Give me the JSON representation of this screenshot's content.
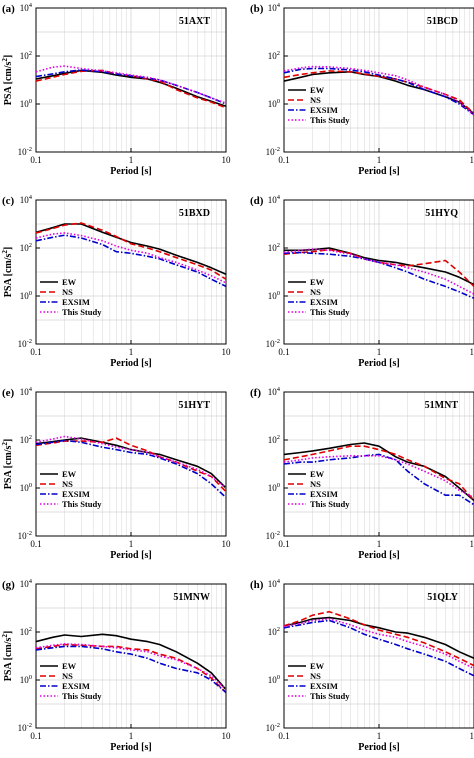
{
  "figure": {
    "legend_entries": [
      "EW",
      "NS",
      "EXSIM",
      "This Study"
    ],
    "series_style": {
      "EW": {
        "color": "#000000",
        "dash": "solid"
      },
      "NS": {
        "color": "#e00000",
        "dash": "dashed"
      },
      "EXSIM": {
        "color": "#0000cc",
        "dash": "dashdot"
      },
      "This Study": {
        "color": "#e000e0",
        "dash": "dotted"
      }
    },
    "legend_placement": "bottom-left"
  },
  "chart_data": [
    {
      "type": "line",
      "panel_label": "(a)",
      "station": "51AXT",
      "xlabel": "Period [s]",
      "ylabel": "PSA [cm/s",
      "ylabel_sup": "2",
      "ylabel_end": "]",
      "xscale": "log",
      "yscale": "log",
      "xlim": [
        0.1,
        10
      ],
      "ylim": [
        0.01,
        10000
      ],
      "xticks": [
        "0.1",
        "1",
        "10"
      ],
      "yticks_exp": [
        "-2",
        "0",
        "2",
        "4"
      ],
      "grid": true,
      "legend": false,
      "x": [
        0.1,
        0.15,
        0.2,
        0.3,
        0.5,
        0.7,
        1,
        1.5,
        2,
        3,
        5,
        7,
        10
      ],
      "series": [
        {
          "name": "EW",
          "values": [
            11,
            15,
            19,
            25,
            21,
            16,
            13,
            11,
            8,
            4.5,
            2,
            1.3,
            0.8
          ]
        },
        {
          "name": "NS",
          "values": [
            9,
            13,
            17,
            23,
            25,
            18,
            15,
            11,
            9,
            4,
            1.8,
            1.2,
            0.7
          ]
        },
        {
          "name": "EXSIM",
          "values": [
            14,
            18,
            22,
            26,
            22,
            18,
            15,
            12,
            10,
            6,
            3,
            1.8,
            1
          ]
        },
        {
          "name": "This Study",
          "values": [
            22,
            34,
            38,
            30,
            24,
            20,
            16,
            13,
            10,
            6,
            3,
            1.8,
            1.1
          ]
        }
      ]
    },
    {
      "type": "line",
      "panel_label": "(b)",
      "station": "51BCD",
      "xlabel": "Period [s]",
      "ylabel": "",
      "ylabel_sup": "",
      "ylabel_end": "",
      "xscale": "log",
      "yscale": "log",
      "xlim": [
        0.1,
        10
      ],
      "ylim": [
        0.01,
        10000
      ],
      "xticks": [
        "0.1",
        "1",
        "10"
      ],
      "yticks_exp": [
        "-2",
        "0",
        "2",
        "4"
      ],
      "grid": true,
      "legend": true,
      "x": [
        0.1,
        0.15,
        0.2,
        0.3,
        0.5,
        0.7,
        1,
        1.5,
        2,
        3,
        5,
        7,
        10
      ],
      "series": [
        {
          "name": "EW",
          "values": [
            9,
            13,
            17,
            20,
            22,
            17,
            14,
            9,
            6,
            4,
            2,
            1.2,
            0.4
          ]
        },
        {
          "name": "NS",
          "values": [
            13,
            17,
            20,
            24,
            22,
            18,
            14,
            11,
            8,
            5,
            2.5,
            1.5,
            0.4
          ]
        },
        {
          "name": "EXSIM",
          "values": [
            20,
            28,
            30,
            30,
            26,
            22,
            16,
            11,
            8,
            4,
            2,
            1,
            0.35
          ]
        },
        {
          "name": "This Study",
          "values": [
            24,
            32,
            36,
            35,
            30,
            25,
            20,
            15,
            10,
            5,
            2.5,
            1.2,
            0.35
          ]
        }
      ]
    },
    {
      "type": "line",
      "panel_label": "(c)",
      "station": "51BXD",
      "xlabel": "Period [s]",
      "ylabel": "PSA [cm/s",
      "ylabel_sup": "2",
      "ylabel_end": "]",
      "xscale": "log",
      "yscale": "log",
      "xlim": [
        0.1,
        10
      ],
      "ylim": [
        0.01,
        10000
      ],
      "xticks": [
        "0.1",
        "1",
        "10"
      ],
      "yticks_exp": [
        "-2",
        "0",
        "2",
        "4"
      ],
      "grid": true,
      "legend": true,
      "x": [
        0.1,
        0.15,
        0.2,
        0.3,
        0.5,
        0.7,
        1,
        1.5,
        2,
        3,
        5,
        7,
        10
      ],
      "series": [
        {
          "name": "EW",
          "values": [
            450,
            700,
            1000,
            1000,
            450,
            280,
            170,
            120,
            90,
            50,
            25,
            15,
            8
          ]
        },
        {
          "name": "NS",
          "values": [
            420,
            650,
            900,
            1100,
            550,
            300,
            150,
            100,
            70,
            40,
            20,
            12,
            5
          ]
        },
        {
          "name": "EXSIM",
          "values": [
            200,
            280,
            340,
            260,
            140,
            70,
            60,
            45,
            35,
            20,
            10,
            5,
            2.5
          ]
        },
        {
          "name": "This Study",
          "values": [
            260,
            380,
            420,
            330,
            200,
            120,
            80,
            60,
            40,
            25,
            12,
            7,
            3.5
          ]
        }
      ]
    },
    {
      "type": "line",
      "panel_label": "(d)",
      "station": "51HYQ",
      "xlabel": "Period [s]",
      "ylabel": "",
      "ylabel_sup": "",
      "ylabel_end": "",
      "xscale": "log",
      "yscale": "log",
      "xlim": [
        0.1,
        10
      ],
      "ylim": [
        0.01,
        10000
      ],
      "xticks": [
        "0.1",
        "1",
        "10"
      ],
      "yticks_exp": [
        "-2",
        "0",
        "2",
        "4"
      ],
      "grid": true,
      "legend": true,
      "x": [
        0.1,
        0.15,
        0.2,
        0.3,
        0.5,
        0.7,
        1,
        1.5,
        2,
        3,
        5,
        7,
        10
      ],
      "series": [
        {
          "name": "EW",
          "values": [
            80,
            80,
            85,
            100,
            60,
            40,
            30,
            25,
            20,
            15,
            10,
            6,
            3
          ]
        },
        {
          "name": "NS",
          "values": [
            55,
            65,
            70,
            85,
            60,
            35,
            25,
            20,
            18,
            22,
            30,
            10,
            2.5
          ]
        },
        {
          "name": "EXSIM",
          "values": [
            60,
            65,
            60,
            55,
            45,
            35,
            25,
            15,
            10,
            5,
            2.5,
            1.5,
            0.8
          ]
        },
        {
          "name": "This Study",
          "values": [
            65,
            80,
            90,
            80,
            55,
            35,
            25,
            20,
            15,
            10,
            5,
            2.5,
            1.2
          ]
        }
      ]
    },
    {
      "type": "line",
      "panel_label": "(e)",
      "station": "51HYT",
      "xlabel": "Period [s]",
      "ylabel": "PSA [cm/s",
      "ylabel_sup": "2",
      "ylabel_end": "]",
      "xscale": "log",
      "yscale": "log",
      "xlim": [
        0.1,
        10
      ],
      "ylim": [
        0.01,
        10000
      ],
      "xticks": [
        "0.1",
        "1",
        "10"
      ],
      "yticks_exp": [
        "-2",
        "0",
        "2",
        "4"
      ],
      "grid": true,
      "legend": true,
      "x": [
        0.1,
        0.15,
        0.2,
        0.3,
        0.5,
        0.7,
        1,
        1.5,
        2,
        3,
        5,
        7,
        10
      ],
      "series": [
        {
          "name": "EW",
          "values": [
            70,
            85,
            100,
            120,
            80,
            60,
            40,
            30,
            25,
            15,
            8,
            4,
            1
          ]
        },
        {
          "name": "NS",
          "values": [
            60,
            75,
            90,
            90,
            80,
            120,
            60,
            35,
            20,
            12,
            5,
            3,
            0.7
          ]
        },
        {
          "name": "EXSIM",
          "values": [
            65,
            80,
            95,
            80,
            50,
            40,
            30,
            25,
            18,
            10,
            4,
            1.5,
            0.4
          ]
        },
        {
          "name": "This Study",
          "values": [
            80,
            110,
            140,
            110,
            70,
            50,
            40,
            30,
            20,
            12,
            6,
            3,
            1
          ]
        }
      ]
    },
    {
      "type": "line",
      "panel_label": "(f)",
      "station": "51MNT",
      "xlabel": "Period [s]",
      "ylabel": "",
      "ylabel_sup": "",
      "ylabel_end": "",
      "xscale": "log",
      "yscale": "log",
      "xlim": [
        0.1,
        10
      ],
      "ylim": [
        0.01,
        10000
      ],
      "xticks": [
        "0.1",
        "1",
        "10"
      ],
      "yticks_exp": [
        "-2",
        "0",
        "2",
        "4"
      ],
      "grid": true,
      "legend": true,
      "x": [
        0.1,
        0.15,
        0.2,
        0.3,
        0.5,
        0.7,
        1,
        1.5,
        2,
        3,
        5,
        7,
        10
      ],
      "series": [
        {
          "name": "EW",
          "values": [
            25,
            30,
            35,
            45,
            65,
            75,
            55,
            20,
            12,
            8,
            3,
            1,
            0.3
          ]
        },
        {
          "name": "NS",
          "values": [
            15,
            20,
            25,
            35,
            55,
            55,
            40,
            25,
            15,
            8,
            2.5,
            1.5,
            0.3
          ]
        },
        {
          "name": "EXSIM",
          "values": [
            10,
            12,
            12,
            15,
            18,
            22,
            25,
            15,
            5,
            1.5,
            0.5,
            0.5,
            0.2
          ]
        },
        {
          "name": "This Study",
          "values": [
            12,
            15,
            18,
            20,
            22,
            22,
            22,
            15,
            10,
            5,
            2,
            0.8,
            0.4
          ]
        }
      ]
    },
    {
      "type": "line",
      "panel_label": "(g)",
      "station": "51MNW",
      "xlabel": "Period [s]",
      "ylabel": "PSA [cm/s",
      "ylabel_sup": "2",
      "ylabel_end": "]",
      "xscale": "log",
      "yscale": "log",
      "xlim": [
        0.1,
        10
      ],
      "ylim": [
        0.01,
        10000
      ],
      "xticks": [
        "0.1",
        "1",
        "10"
      ],
      "yticks_exp": [
        "-2",
        "0",
        "2",
        "4"
      ],
      "grid": true,
      "legend": true,
      "x": [
        0.1,
        0.15,
        0.2,
        0.3,
        0.5,
        0.7,
        1,
        1.5,
        2,
        3,
        5,
        7,
        10
      ],
      "series": [
        {
          "name": "EW",
          "values": [
            40,
            60,
            75,
            65,
            80,
            70,
            50,
            40,
            30,
            15,
            5,
            2,
            0.4
          ]
        },
        {
          "name": "NS",
          "values": [
            20,
            25,
            30,
            28,
            25,
            25,
            20,
            18,
            12,
            8,
            3,
            1.2,
            0.3
          ]
        },
        {
          "name": "EXSIM",
          "values": [
            18,
            22,
            25,
            25,
            20,
            15,
            12,
            8,
            5,
            3,
            2,
            1,
            0.3
          ]
        },
        {
          "name": "This Study",
          "values": [
            22,
            28,
            32,
            30,
            25,
            22,
            18,
            15,
            10,
            7,
            3,
            1.5,
            0.4
          ]
        }
      ]
    },
    {
      "type": "line",
      "panel_label": "(h)",
      "station": "51QLY",
      "xlabel": "Period [s]",
      "ylabel": "",
      "ylabel_sup": "",
      "ylabel_end": "",
      "xscale": "log",
      "yscale": "log",
      "xlim": [
        0.1,
        10
      ],
      "ylim": [
        0.01,
        10000
      ],
      "xticks": [
        "0.1",
        "1",
        "10"
      ],
      "yticks_exp": [
        "-2",
        "0",
        "2",
        "4"
      ],
      "grid": true,
      "legend": true,
      "x": [
        0.1,
        0.15,
        0.2,
        0.3,
        0.5,
        0.7,
        1,
        1.5,
        2,
        3,
        5,
        7,
        10
      ],
      "series": [
        {
          "name": "EW",
          "values": [
            180,
            250,
            350,
            400,
            300,
            200,
            150,
            100,
            90,
            60,
            30,
            15,
            8
          ]
        },
        {
          "name": "NS",
          "values": [
            180,
            300,
            500,
            700,
            350,
            200,
            120,
            80,
            60,
            35,
            15,
            8,
            4
          ]
        },
        {
          "name": "EXSIM",
          "values": [
            150,
            200,
            250,
            300,
            150,
            80,
            50,
            30,
            20,
            12,
            6,
            3,
            1.5
          ]
        },
        {
          "name": "This Study",
          "values": [
            170,
            230,
            300,
            350,
            200,
            120,
            80,
            60,
            40,
            25,
            12,
            6,
            3
          ]
        }
      ]
    }
  ]
}
